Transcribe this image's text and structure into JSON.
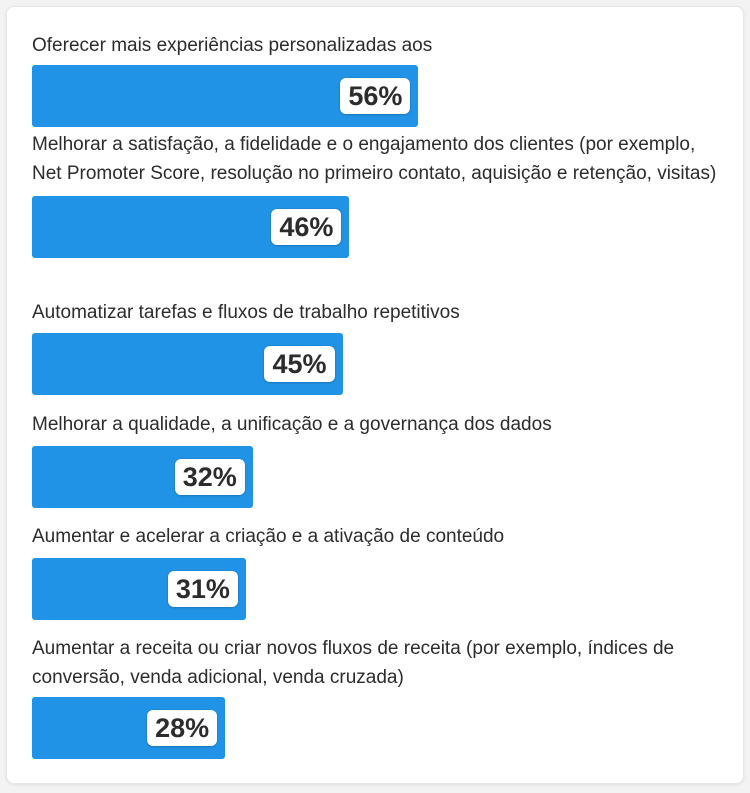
{
  "chart_data": {
    "type": "bar",
    "orientation": "horizontal",
    "categories": [
      "Oferecer mais experiências personalizadas aos",
      "Melhorar a satisfação, a fidelidade e o engajamento dos clientes (por exemplo, Net Promoter Score, resolução no primeiro contato, aquisição e retenção, visitas)",
      "Automatizar tarefas e fluxos de trabalho repetitivos",
      "Melhorar a qualidade, a unificação e a governança dos dados",
      "Aumentar e acelerar a criação e a ativação de conteúdo",
      "Aumentar a receita ou criar novos fluxos de receita (por exemplo, índices de conversão, venda adicional, venda cruzada)"
    ],
    "values": [
      56,
      46,
      45,
      32,
      31,
      28
    ],
    "value_labels": [
      "56%",
      "46%",
      "45%",
      "32%",
      "31%",
      "28%"
    ],
    "bar_color": "#2193e6",
    "xlim": [
      0,
      100
    ]
  }
}
